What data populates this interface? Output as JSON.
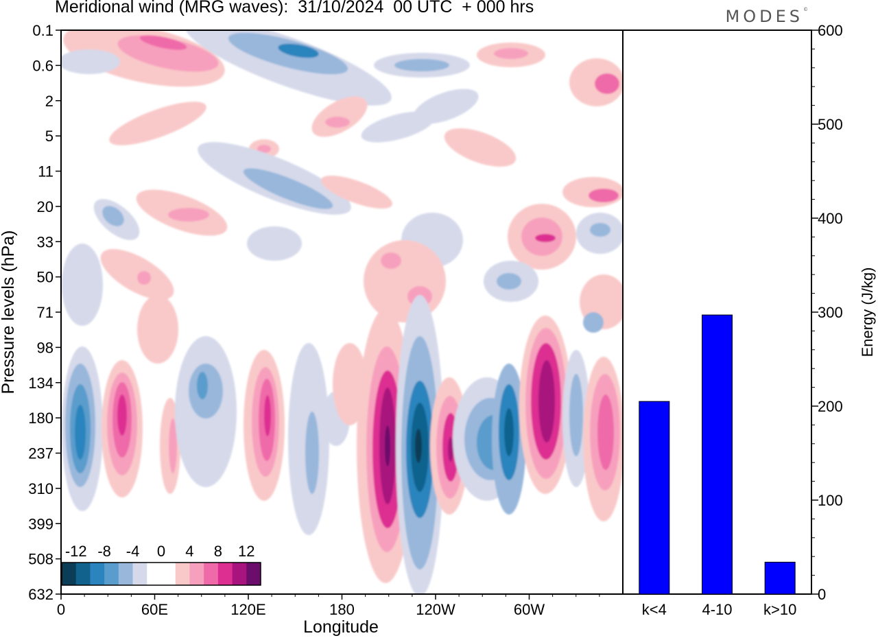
{
  "title": "Meridional wind (MRG waves):  31/10/2024  00 UTC  + 000 hrs",
  "brand": "MODES",
  "brand_mark": "©",
  "chart_data": [
    {
      "type": "heatmap",
      "variable": "Meridional wind",
      "xlabel": "Longitude",
      "ylabel": "Pressure levels (hPa)",
      "x_ticks": [
        "0",
        "60E",
        "120E",
        "180",
        "120W",
        "60W"
      ],
      "y_ticks": [
        "0.1",
        "0.6",
        "2",
        "5",
        "11",
        "20",
        "33",
        "50",
        "71",
        "98",
        "134",
        "180",
        "237",
        "310",
        "399",
        "508",
        "632"
      ],
      "colorbar": {
        "labels": [
          "-12",
          "-8",
          "-4",
          "0",
          "4",
          "8",
          "12"
        ],
        "colors": [
          "#0b3d56",
          "#11638e",
          "#2b84bd",
          "#5a9ccc",
          "#98b7db",
          "#d5d9ea",
          "#ffffff",
          "#ffffff",
          "#f9c9c9",
          "#f7a0be",
          "#ef6aa9",
          "#dd2e92",
          "#a8147d",
          "#6a0d6b"
        ]
      }
    },
    {
      "type": "bar",
      "categories": [
        "k<4",
        "4-10",
        "k>10"
      ],
      "values": [
        205,
        297,
        34
      ],
      "ylabel": "Energy (J/kg)",
      "ylim": [
        0,
        600
      ],
      "y_ticks": [
        0,
        100,
        200,
        300,
        400,
        500,
        600
      ],
      "bar_color": "#0000ff"
    }
  ]
}
